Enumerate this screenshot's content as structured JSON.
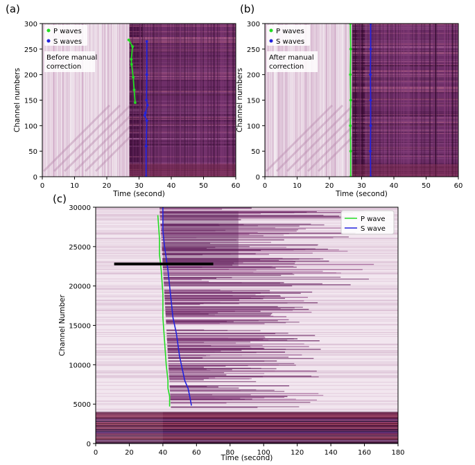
{
  "figure": {
    "panels": [
      {
        "id": "a",
        "letter": "(a)"
      },
      {
        "id": "b",
        "letter": "(b)"
      },
      {
        "id": "c",
        "letter": "(c)"
      }
    ]
  },
  "chart_data": [
    {
      "panel": "(a)",
      "type": "line",
      "background": "seismic waveform image (time vs channel), purple colormap",
      "xlabel": "Time (second)",
      "ylabel": "Channel numbers",
      "xlim": [
        0,
        60
      ],
      "ylim": [
        0,
        300
      ],
      "xticks": [
        0,
        10,
        20,
        30,
        40,
        50,
        60
      ],
      "yticks": [
        0,
        50,
        100,
        150,
        200,
        250,
        300
      ],
      "annotation": "Before manual correction",
      "legend": {
        "placement": "top-left",
        "entries": [
          "P waves",
          "S waves"
        ]
      },
      "series": [
        {
          "name": "P waves",
          "color": "#22dd22",
          "marker": "dot",
          "points": [
            [
              26.8,
              268
            ],
            [
              28.0,
              255
            ],
            [
              27.6,
              230
            ],
            [
              27.7,
              220
            ],
            [
              28.2,
              195
            ],
            [
              28.5,
              170
            ],
            [
              28.8,
              145
            ]
          ]
        },
        {
          "name": "S waves",
          "color": "#2222dd",
          "marker": "dot",
          "points": [
            [
              32.4,
              265
            ],
            [
              32.4,
              200
            ],
            [
              32.3,
              150
            ],
            [
              32.6,
              140
            ],
            [
              32.0,
              125
            ],
            [
              31.8,
              120
            ],
            [
              32.4,
              110
            ],
            [
              32.2,
              60
            ],
            [
              32.2,
              0
            ]
          ]
        }
      ]
    },
    {
      "panel": "(b)",
      "type": "line",
      "background": "seismic waveform image (time vs channel), purple colormap",
      "xlabel": "Time (second)",
      "ylabel": "Channel numbers",
      "xlim": [
        0,
        60
      ],
      "ylim": [
        0,
        300
      ],
      "xticks": [
        0,
        10,
        20,
        30,
        40,
        50,
        60
      ],
      "yticks": [
        0,
        50,
        100,
        150,
        200,
        250,
        300
      ],
      "annotation": "After manual correction",
      "legend": {
        "placement": "top-left",
        "entries": [
          "P waves",
          "S waves"
        ]
      },
      "series": [
        {
          "name": "P waves",
          "color": "#22dd22",
          "marker": "dot",
          "points": [
            [
              26.5,
              300
            ],
            [
              26.6,
              250
            ],
            [
              26.5,
              200
            ],
            [
              26.6,
              150
            ],
            [
              26.5,
              100
            ],
            [
              26.6,
              50
            ],
            [
              26.6,
              0
            ]
          ]
        },
        {
          "name": "S waves",
          "color": "#2222dd",
          "marker": "dot",
          "points": [
            [
              32.8,
              300
            ],
            [
              32.8,
              250
            ],
            [
              32.7,
              200
            ],
            [
              32.8,
              150
            ],
            [
              32.8,
              100
            ],
            [
              32.7,
              50
            ],
            [
              32.8,
              0
            ]
          ]
        }
      ]
    },
    {
      "panel": "(c)",
      "type": "line",
      "background": "seismic waveform image (time vs channel), purple colormap",
      "xlabel": "Time (second)",
      "ylabel": "Channel Number",
      "xlim": [
        0,
        180
      ],
      "ylim": [
        0,
        30000
      ],
      "xticks": [
        0,
        20,
        40,
        60,
        80,
        100,
        120,
        140,
        160,
        180
      ],
      "yticks": [
        0,
        5000,
        10000,
        15000,
        20000,
        25000,
        30000
      ],
      "legend": {
        "placement": "top-right",
        "entries": [
          "P wave",
          "S wave"
        ]
      },
      "bar": {
        "x": [
          11,
          70
        ],
        "y": 22800
      },
      "series": [
        {
          "name": "P wave",
          "color": "#22dd22",
          "points": [
            [
              37,
              29000
            ],
            [
              38,
              26000
            ],
            [
              38,
              24000
            ],
            [
              39,
              22000
            ],
            [
              40,
              19000
            ],
            [
              40,
              16000
            ],
            [
              41,
              13000
            ],
            [
              42,
              10000
            ],
            [
              43,
              8000
            ],
            [
              43,
              7000
            ],
            [
              44,
              6000
            ],
            [
              44,
              4700
            ]
          ]
        },
        {
          "name": "S wave",
          "color": "#2222dd",
          "points": [
            [
              40,
              30000
            ],
            [
              40,
              27000
            ],
            [
              41,
              25000
            ],
            [
              43,
              22000
            ],
            [
              44,
              20000
            ],
            [
              46,
              16000
            ],
            [
              48,
              14000
            ],
            [
              50,
              11000
            ],
            [
              52,
              9000
            ],
            [
              53,
              8000
            ],
            [
              55,
              7000
            ],
            [
              56,
              6000
            ],
            [
              57,
              4800
            ]
          ]
        }
      ]
    }
  ]
}
